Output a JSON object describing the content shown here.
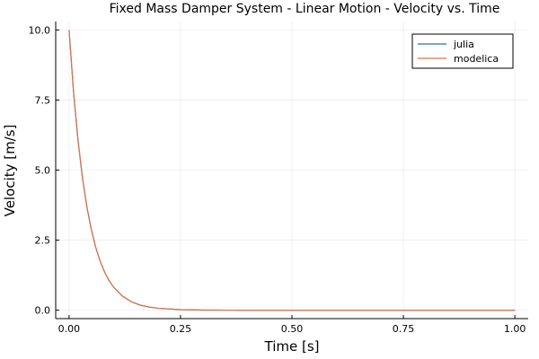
{
  "chart_data": {
    "type": "line",
    "title": "Fixed Mass Damper System - Linear Motion - Velocity vs. Time",
    "xlabel": "Time [s]",
    "ylabel": "Velocity [m/s]",
    "xlim": [
      -0.03,
      1.03
    ],
    "ylim": [
      -0.3,
      10.3
    ],
    "xticks": [
      0.0,
      0.25,
      0.5,
      0.75,
      1.0
    ],
    "xtick_labels": [
      "0.00",
      "0.25",
      "0.50",
      "0.75",
      "1.00"
    ],
    "yticks": [
      0.0,
      2.5,
      5.0,
      7.5,
      10.0
    ],
    "ytick_labels": [
      "0.0",
      "2.5",
      "5.0",
      "7.5",
      "10.0"
    ],
    "grid": true,
    "legend_position": "top-right",
    "x": [
      0.0,
      0.01,
      0.02,
      0.03,
      0.04,
      0.05,
      0.06,
      0.07,
      0.08,
      0.09,
      0.1,
      0.12,
      0.14,
      0.16,
      0.18,
      0.2,
      0.25,
      0.3,
      0.4,
      0.5,
      0.6,
      0.7,
      0.8,
      0.9,
      1.0
    ],
    "series": [
      {
        "name": "julia",
        "color": "#1f77b4",
        "values": [
          10.0,
          7.79,
          6.07,
          4.73,
          3.68,
          2.87,
          2.23,
          1.74,
          1.35,
          1.05,
          0.82,
          0.5,
          0.3,
          0.18,
          0.11,
          0.07,
          0.02,
          0.005,
          0.0,
          0.0,
          0.0,
          0.0,
          0.0,
          0.0,
          0.0
        ]
      },
      {
        "name": "modelica",
        "color": "#e26f46",
        "values": [
          10.0,
          7.79,
          6.07,
          4.73,
          3.68,
          2.87,
          2.23,
          1.74,
          1.35,
          1.05,
          0.82,
          0.5,
          0.3,
          0.18,
          0.11,
          0.07,
          0.02,
          0.005,
          0.0,
          0.0,
          0.0,
          0.0,
          0.0,
          0.0,
          0.0
        ]
      }
    ]
  }
}
